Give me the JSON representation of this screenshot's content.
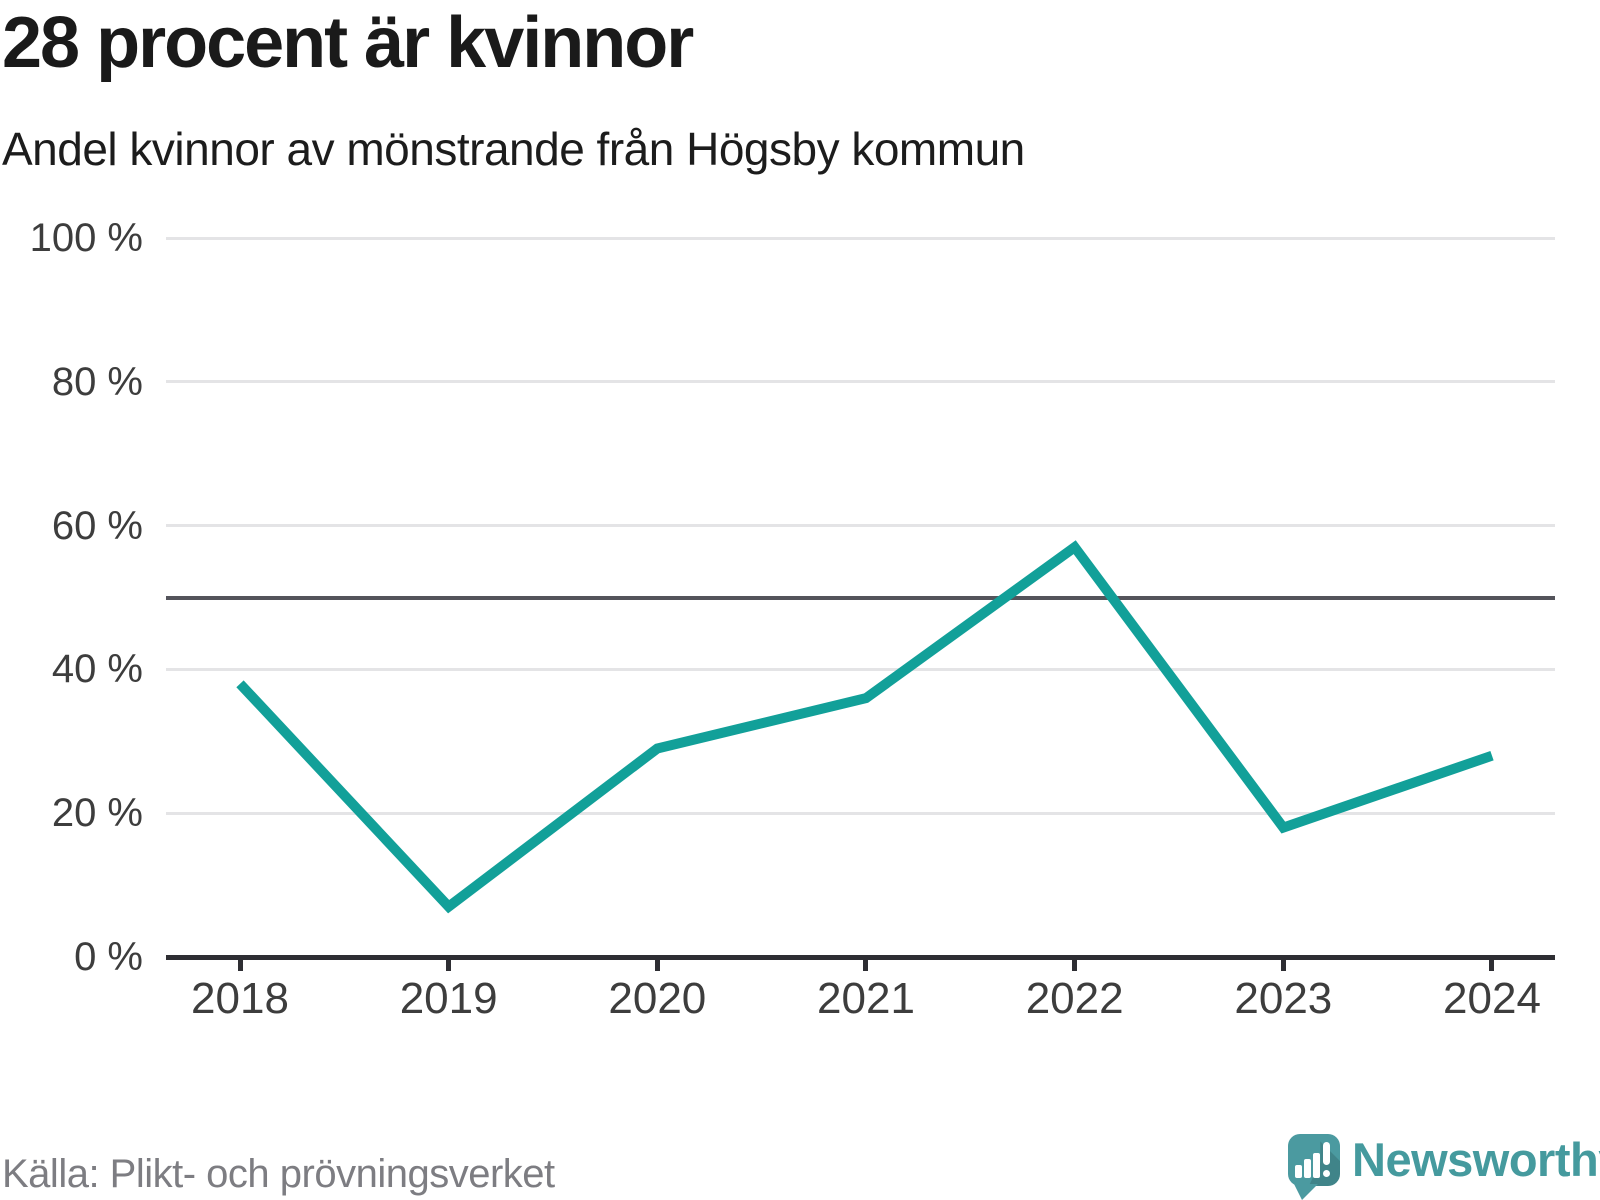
{
  "header": {
    "title": "28 procent är kvinnor",
    "subtitle": "Andel kvinnor av mönstrande från Högsby kommun"
  },
  "chart_data": {
    "type": "line",
    "title": "28 procent är kvinnor",
    "subtitle": "Andel kvinnor av mönstrande från Högsby kommun",
    "x": [
      "2018",
      "2019",
      "2020",
      "2021",
      "2022",
      "2023",
      "2024"
    ],
    "series": [
      {
        "name": "Andel kvinnor av mönstrande",
        "values": [
          38,
          7,
          29,
          36,
          57,
          18,
          28
        ]
      }
    ],
    "unit": "%",
    "ylim": [
      0,
      100
    ],
    "y_ticks": [
      {
        "label": "100 %",
        "value": 100
      },
      {
        "label": "80 %",
        "value": 80
      },
      {
        "label": "60 %",
        "value": 60
      },
      {
        "label": "40 %",
        "value": 40
      },
      {
        "label": "20 %",
        "value": 20
      },
      {
        "label": "0 %",
        "value": 0
      }
    ],
    "reference_line": {
      "value": 50
    },
    "grid": "horizontal",
    "legend": "none"
  },
  "colors": {
    "accent_line": "#12a099",
    "reference_line": "#54545b",
    "axis": "#2e2e33",
    "gridline": "#e4e4e6",
    "brand_teal": "#4b9aa0",
    "brand_text": "#459a9e"
  },
  "footer": {
    "source": "Källa: Plikt- och prövningsverket",
    "brand": "Newsworthy"
  }
}
